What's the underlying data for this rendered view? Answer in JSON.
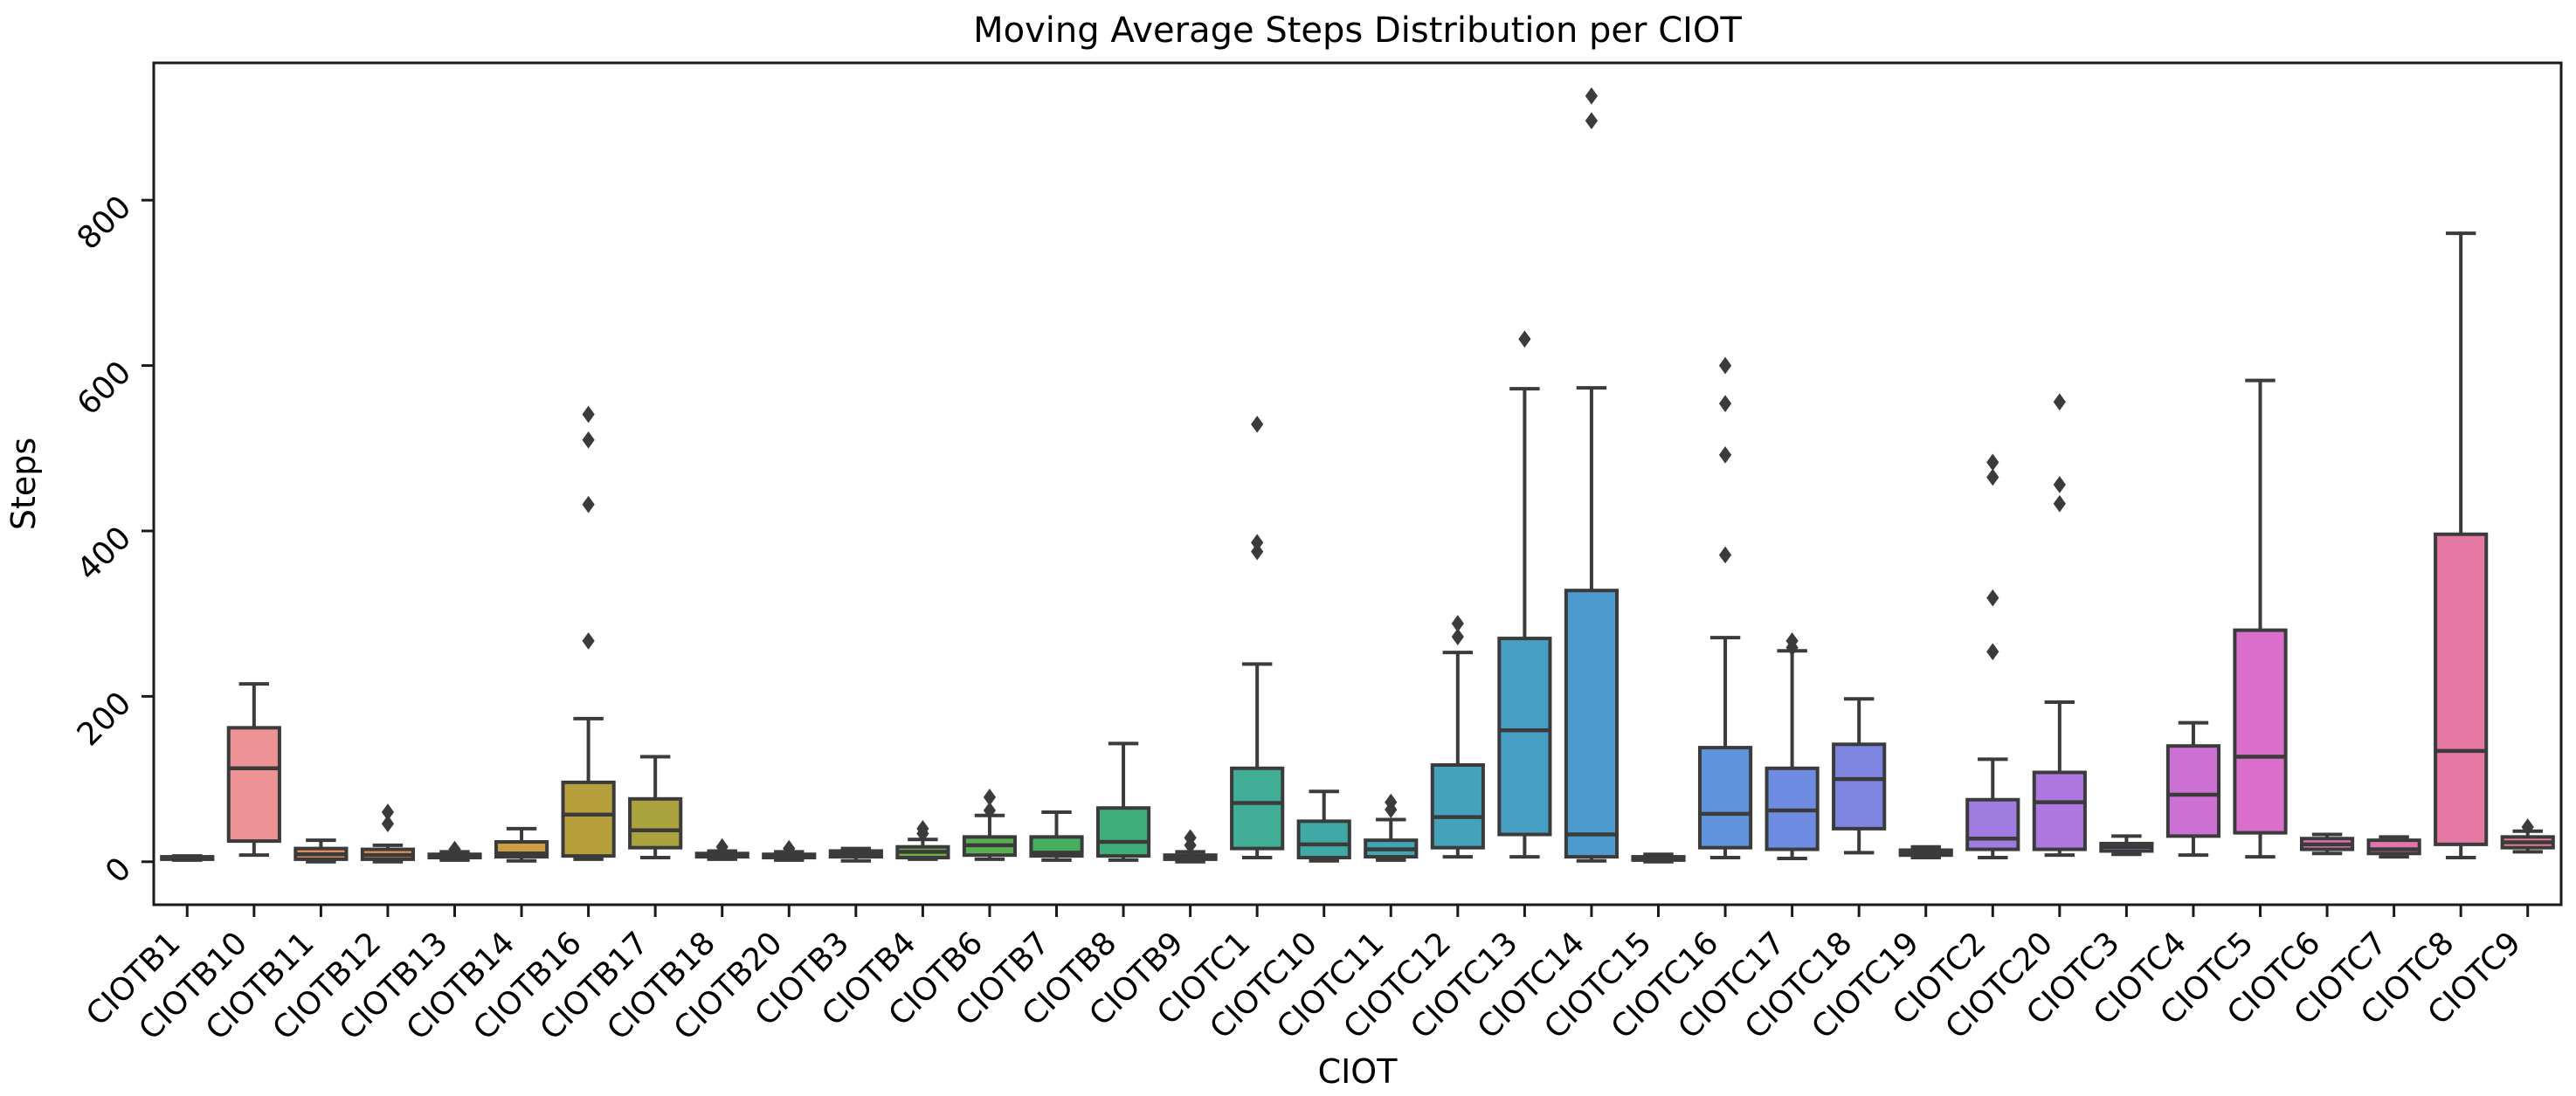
{
  "chart_data": {
    "type": "box",
    "title": "Moving Average Steps Distribution per CIOT",
    "xlabel": "CIOT",
    "ylabel": "Steps",
    "yticks": [
      0,
      200,
      400,
      600,
      800
    ],
    "ylim": [
      -52,
      966
    ],
    "grid": false,
    "legend": "none",
    "edge_color": "#3b3b3b",
    "spine_color": "#1a1a1a",
    "series": [
      {
        "label": "CIOTB1",
        "color": "#e8828c",
        "whislo": 2,
        "q1": 3,
        "med": 4.5,
        "q3": 6,
        "whishi": 7,
        "fliers": []
      },
      {
        "label": "CIOTB10",
        "color": "#ed9295",
        "whislo": 8,
        "q1": 25,
        "med": 113,
        "q3": 162,
        "whishi": 215,
        "fliers": []
      },
      {
        "label": "CIOTB11",
        "color": "#e08a62",
        "whislo": 0,
        "q1": 3,
        "med": 9,
        "q3": 16,
        "whishi": 26,
        "fliers": []
      },
      {
        "label": "CIOTB12",
        "color": "#dc9050",
        "whislo": 0,
        "q1": 3,
        "med": 8,
        "q3": 15,
        "whishi": 20,
        "fliers": [
          46,
          60
        ]
      },
      {
        "label": "CIOTB13",
        "color": "#d29a48",
        "whislo": 2,
        "q1": 5,
        "med": 7,
        "q3": 9,
        "whishi": 12,
        "fliers": [
          15
        ]
      },
      {
        "label": "CIOTB14",
        "color": "#cb9f43",
        "whislo": 1,
        "q1": 6,
        "med": 10,
        "q3": 24,
        "whishi": 40,
        "fliers": []
      },
      {
        "label": "CIOTB16",
        "color": "#b7a03c",
        "whislo": 3,
        "q1": 7,
        "med": 57,
        "q3": 96,
        "whishi": 173,
        "fliers": [
          267,
          432,
          510,
          541
        ]
      },
      {
        "label": "CIOTB17",
        "color": "#aaa23c",
        "whislo": 5,
        "q1": 17,
        "med": 38,
        "q3": 76,
        "whishi": 127,
        "fliers": []
      },
      {
        "label": "CIOTB18",
        "color": "#9ca63e",
        "whislo": 3,
        "q1": 6,
        "med": 8,
        "q3": 10,
        "whishi": 13,
        "fliers": [
          18
        ]
      },
      {
        "label": "CIOTB20",
        "color": "#8fa841",
        "whislo": 2,
        "q1": 5,
        "med": 7,
        "q3": 9,
        "whishi": 12,
        "fliers": [
          16
        ]
      },
      {
        "label": "CIOTB3",
        "color": "#83aa3f",
        "whislo": 1,
        "q1": 6,
        "med": 9,
        "q3": 13,
        "whishi": 16,
        "fliers": []
      },
      {
        "label": "CIOTB4",
        "color": "#74ac43",
        "whislo": 3,
        "q1": 5,
        "med": 12,
        "q3": 18,
        "whishi": 27,
        "fliers": [
          34,
          40
        ]
      },
      {
        "label": "CIOTB6",
        "color": "#59ad52",
        "whislo": 3,
        "q1": 8,
        "med": 20,
        "q3": 30,
        "whishi": 56,
        "fliers": [
          62,
          78
        ]
      },
      {
        "label": "CIOTB7",
        "color": "#47ad5f",
        "whislo": 2,
        "q1": 7,
        "med": 11,
        "q3": 30,
        "whishi": 60,
        "fliers": []
      },
      {
        "label": "CIOTB8",
        "color": "#3fae79",
        "whislo": 2,
        "q1": 7,
        "med": 24,
        "q3": 65,
        "whishi": 143,
        "fliers": []
      },
      {
        "label": "CIOTB9",
        "color": "#3fae8c",
        "whislo": 0,
        "q1": 3,
        "med": 5,
        "q3": 8,
        "whishi": 12,
        "fliers": [
          20,
          29
        ]
      },
      {
        "label": "CIOTC1",
        "color": "#41ad96",
        "whislo": 5,
        "q1": 16,
        "med": 71,
        "q3": 113,
        "whishi": 239,
        "fliers": [
          375,
          386,
          529
        ]
      },
      {
        "label": "CIOTC10",
        "color": "#3fa9a5",
        "whislo": 1,
        "q1": 5,
        "med": 21,
        "q3": 49,
        "whishi": 85,
        "fliers": []
      },
      {
        "label": "CIOTC11",
        "color": "#41a6b1",
        "whislo": 2,
        "q1": 6,
        "med": 15,
        "q3": 26,
        "whishi": 51,
        "fliers": [
          63,
          72
        ]
      },
      {
        "label": "CIOTC12",
        "color": "#44a2bb",
        "whislo": 6,
        "q1": 17,
        "med": 54,
        "q3": 117,
        "whishi": 253,
        "fliers": [
          272,
          288
        ]
      },
      {
        "label": "CIOTC13",
        "color": "#479fc4",
        "whislo": 6,
        "q1": 33,
        "med": 159,
        "q3": 270,
        "whishi": 572,
        "fliers": [
          632
        ]
      },
      {
        "label": "CIOTC14",
        "color": "#4d9bce",
        "whislo": 1,
        "q1": 6,
        "med": 33,
        "q3": 328,
        "whishi": 573,
        "fliers": [
          896,
          926
        ]
      },
      {
        "label": "CIOTC15",
        "color": "#5897d8",
        "whislo": 0,
        "q1": 2,
        "med": 4,
        "q3": 6,
        "whishi": 9,
        "fliers": []
      },
      {
        "label": "CIOTC16",
        "color": "#5f93dc",
        "whislo": 5,
        "q1": 17,
        "med": 58,
        "q3": 138,
        "whishi": 271,
        "fliers": [
          371,
          492,
          554,
          600
        ]
      },
      {
        "label": "CIOTC17",
        "color": "#6e8ce2",
        "whislo": 4,
        "q1": 15,
        "med": 62,
        "q3": 113,
        "whishi": 255,
        "fliers": [
          259,
          267
        ]
      },
      {
        "label": "CIOTC18",
        "color": "#7f86e2",
        "whislo": 11,
        "q1": 40,
        "med": 100,
        "q3": 142,
        "whishi": 197,
        "fliers": []
      },
      {
        "label": "CIOTC19",
        "color": "#9180e2",
        "whislo": 5,
        "q1": 8,
        "med": 11,
        "q3": 14,
        "whishi": 18,
        "fliers": []
      },
      {
        "label": "CIOTC2",
        "color": "#a07ce1",
        "whislo": 5,
        "q1": 15,
        "med": 28,
        "q3": 75,
        "whishi": 124,
        "fliers": [
          254,
          319,
          465,
          483
        ]
      },
      {
        "label": "CIOTC20",
        "color": "#ae78e0",
        "whislo": 8,
        "q1": 15,
        "med": 72,
        "q3": 108,
        "whishi": 193,
        "fliers": [
          433,
          456,
          556
        ]
      },
      {
        "label": "CIOTC3",
        "color": "#bf74da",
        "whislo": 9,
        "q1": 13,
        "med": 18,
        "q3": 22,
        "whishi": 31,
        "fliers": []
      },
      {
        "label": "CIOTC4",
        "color": "#cd70d4",
        "whislo": 8,
        "q1": 31,
        "med": 81,
        "q3": 140,
        "whishi": 168,
        "fliers": []
      },
      {
        "label": "CIOTC5",
        "color": "#d96ecb",
        "whislo": 6,
        "q1": 35,
        "med": 127,
        "q3": 280,
        "whishi": 582,
        "fliers": []
      },
      {
        "label": "CIOTC6",
        "color": "#e070bc",
        "whislo": 10,
        "q1": 15,
        "med": 21,
        "q3": 28,
        "whishi": 33,
        "fliers": []
      },
      {
        "label": "CIOTC7",
        "color": "#e375b0",
        "whislo": 6,
        "q1": 10,
        "med": 15,
        "q3": 26,
        "whishi": 30,
        "fliers": []
      },
      {
        "label": "CIOTC8",
        "color": "#e678a4",
        "whislo": 5,
        "q1": 21,
        "med": 134,
        "q3": 396,
        "whishi": 760,
        "fliers": []
      },
      {
        "label": "CIOTC9",
        "color": "#e87d98",
        "whislo": 12,
        "q1": 17,
        "med": 23.5,
        "q3": 30,
        "whishi": 37,
        "fliers": [
          42
        ]
      }
    ]
  }
}
